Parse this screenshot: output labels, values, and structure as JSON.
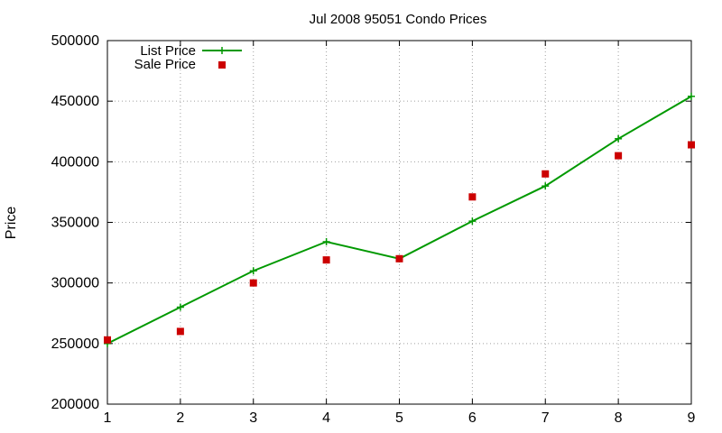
{
  "chart_data": {
    "type": "line",
    "title": "Jul 2008 95051 Condo Prices",
    "xlabel": "",
    "ylabel": "Price",
    "xlim": [
      1,
      9
    ],
    "ylim": [
      200000,
      500000
    ],
    "x_ticks": [
      "1",
      "2",
      "3",
      "4",
      "5",
      "6",
      "7",
      "8",
      "9"
    ],
    "y_ticks": [
      "200000",
      "250000",
      "300000",
      "350000",
      "400000",
      "450000",
      "500000"
    ],
    "grid": true,
    "legend_position": "top-left",
    "series": [
      {
        "name": "List Price",
        "style": "line-with-plus-markers",
        "color": "#009900",
        "x": [
          1,
          2,
          3,
          4,
          5,
          6,
          7,
          8,
          9
        ],
        "values": [
          250000,
          280000,
          310000,
          334000,
          320000,
          351000,
          380000,
          419000,
          454000
        ]
      },
      {
        "name": "Sale Price",
        "style": "square-markers",
        "color": "#cc0000",
        "x": [
          1,
          2,
          3,
          4,
          5,
          6,
          7,
          8,
          9
        ],
        "values": [
          253000,
          260000,
          300000,
          319000,
          320000,
          371000,
          390000,
          405000,
          414000
        ]
      }
    ]
  }
}
